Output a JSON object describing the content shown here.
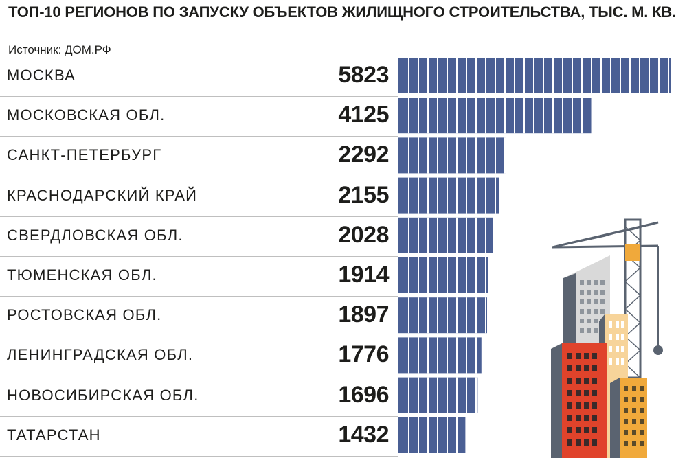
{
  "chart_data": {
    "type": "bar",
    "orientation": "horizontal",
    "title": "ТОП-10 РЕГИОНОВ ПО ЗАПУСКУ ОБЪЕКТОВ ЖИЛИЩНОГО СТРОИТЕЛЬСТВА, ТЫС. М. КВ.",
    "source": "Источник: ДОМ.РФ",
    "categories": [
      "МОСКВА",
      "МОСКОВСКАЯ ОБЛ.",
      "САНКТ-ПЕТЕРБУРГ",
      "КРАСНОДАРСКИЙ КРАЙ",
      "СВЕРДЛОВСКАЯ ОБЛ.",
      "ТЮМЕНСКАЯ ОБЛ.",
      "РОСТОВСКАЯ ОБЛ.",
      "ЛЕНИНГРАДСКАЯ ОБЛ.",
      "НОВОСИБИРСКАЯ ОБЛ.",
      "ТАТАРСТАН"
    ],
    "values": [
      5823,
      4125,
      2292,
      2155,
      2028,
      1914,
      1897,
      1776,
      1696,
      1432
    ],
    "value_labels": [
      "5823",
      "4125",
      "2292",
      "2155",
      "2028",
      "1914",
      "1897",
      "1776",
      "1696",
      "1432"
    ],
    "xlim": [
      0,
      5823
    ],
    "grid": false,
    "legend": "none"
  },
  "colors": {
    "bar": "#4a5f94",
    "bar_divider": "#ffffff",
    "text": "#1d1d1b",
    "row_line": "#bfbfbf",
    "building_red": "#e0432b",
    "building_orange": "#f0a93b",
    "building_beige": "#f7d49a",
    "building_grey_light": "#d9d9d9",
    "building_grey_dark": "#5a6370",
    "crane": "#5a6370"
  }
}
